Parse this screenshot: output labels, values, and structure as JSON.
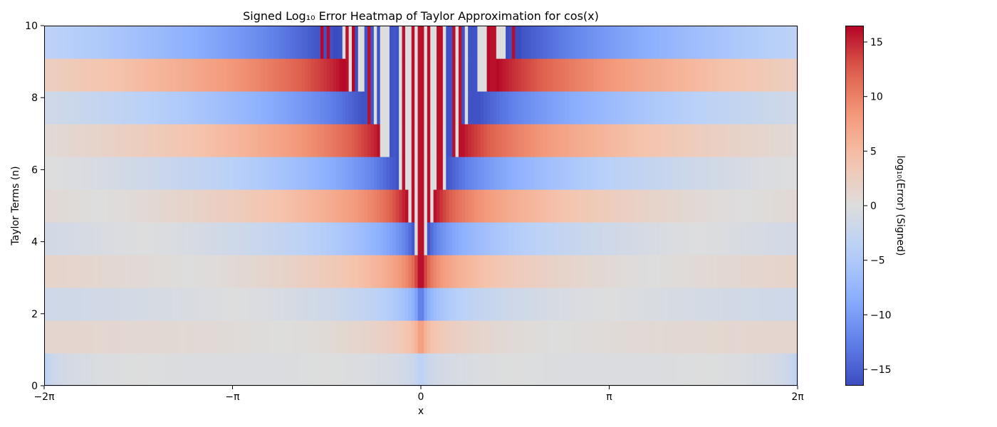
{
  "chart_data": {
    "type": "heatmap",
    "title": "Signed Log₁₀ Error Heatmap of Taylor Approximation for cos(x)",
    "xlabel": "x",
    "ylabel": "Taylor Terms (n)",
    "xlim": [
      -6.2832,
      6.2832
    ],
    "ylim": [
      0,
      10
    ],
    "x_ticks": [
      {
        "value": -6.2832,
        "label": "−2π"
      },
      {
        "value": -3.1416,
        "label": "−π"
      },
      {
        "value": 0,
        "label": "0"
      },
      {
        "value": 3.1416,
        "label": "π"
      },
      {
        "value": 6.2832,
        "label": "2π"
      }
    ],
    "y_ticks": [
      {
        "value": 0,
        "label": "0"
      },
      {
        "value": 2,
        "label": "2"
      },
      {
        "value": 4,
        "label": "4"
      },
      {
        "value": 6,
        "label": "6"
      },
      {
        "value": 8,
        "label": "8"
      },
      {
        "value": 10,
        "label": "10"
      }
    ],
    "colormap": "coolwarm",
    "color_range": [
      -16.5,
      16.5
    ],
    "colorbar": {
      "label": "log₁₀(Error) (Signed)",
      "ticks": [
        {
          "value": -15,
          "label": "−15"
        },
        {
          "value": -10,
          "label": "−10"
        },
        {
          "value": -5,
          "label": "−5"
        },
        {
          "value": 0,
          "label": "0"
        },
        {
          "value": 5,
          "label": "5"
        },
        {
          "value": 10,
          "label": "10"
        },
        {
          "value": 15,
          "label": "15"
        }
      ]
    },
    "rows": [
      {
        "n": 0,
        "sign": -1
      },
      {
        "n": 1,
        "sign": 1
      },
      {
        "n": 2,
        "sign": -1
      },
      {
        "n": 3,
        "sign": 1
      },
      {
        "n": 4,
        "sign": -1
      },
      {
        "n": 5,
        "sign": 1
      },
      {
        "n": 6,
        "sign": -1
      },
      {
        "n": 7,
        "sign": 1
      },
      {
        "n": 8,
        "sign": -1
      },
      {
        "n": 9,
        "sign": 1
      },
      {
        "n": 10,
        "sign": -1
      }
    ],
    "grid": false,
    "legend": "colorbar right"
  }
}
